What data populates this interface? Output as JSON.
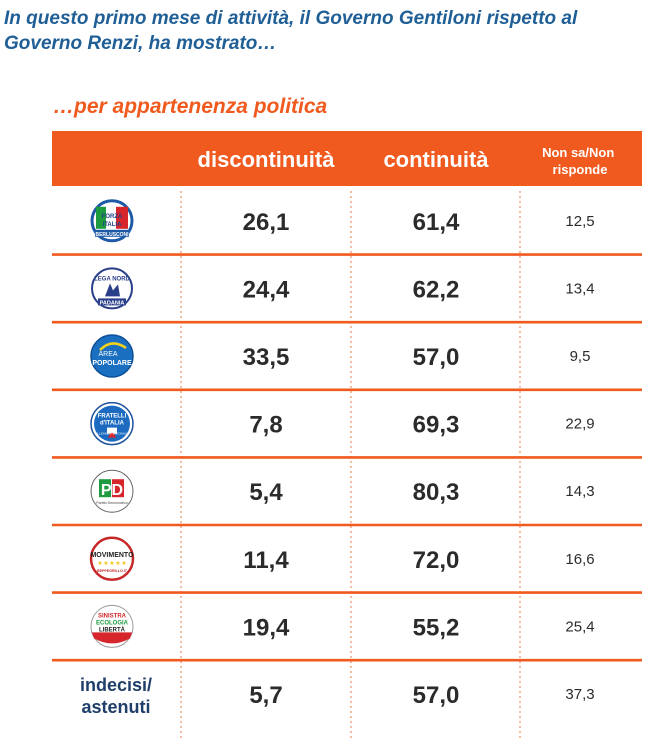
{
  "headline": "In questo primo mese di attività, il Governo Gentiloni rispetto al Governo Renzi, ha mostrato…",
  "subtitle": "…per appartenenza politica",
  "colors": {
    "header_bg": "#f05a1e",
    "header_text": "#ffffff",
    "headline": "#1f5f96",
    "subtitle": "#f05a1e",
    "value_text": "#2b2b2b",
    "row_divider": "#f05a1e",
    "dotted_divider": "#f0a07a"
  },
  "chart_data": {
    "type": "table",
    "columns": [
      "discontinuità",
      "continuità",
      "Non sa/Non risponde"
    ],
    "rows": [
      {
        "party": "Forza Italia",
        "logo_text": [
          "FORZA",
          "ITALIA",
          "BERLUSCONI"
        ],
        "logo_icon": "forza-italia-logo-icon",
        "values": [
          "26,1",
          "61,4",
          "12,5"
        ]
      },
      {
        "party": "Lega Nord",
        "logo_text": [
          "LEGA NORD",
          "PADANIA"
        ],
        "logo_icon": "lega-nord-logo-icon",
        "values": [
          "24,4",
          "62,2",
          "13,4"
        ]
      },
      {
        "party": "Area Popolare",
        "logo_text": [
          "AREA",
          "POPOLARE"
        ],
        "logo_icon": "area-popolare-logo-icon",
        "values": [
          "33,5",
          "57,0",
          "9,5"
        ]
      },
      {
        "party": "Fratelli d'Italia",
        "logo_text": [
          "FRATELLI",
          "d'ITALIA",
          "ALLEANZA NAZIONALE"
        ],
        "logo_icon": "fratelli-italia-logo-icon",
        "values": [
          "7,8",
          "69,3",
          "22,9"
        ]
      },
      {
        "party": "Partito Democratico",
        "logo_text": [
          "PD",
          "Partito Democratico"
        ],
        "logo_icon": "pd-logo-icon",
        "values": [
          "5,4",
          "80,3",
          "14,3"
        ]
      },
      {
        "party": "MoVimento 5 Stelle",
        "logo_text": [
          "MOVIMENTO",
          "BEPPEGRILLO.IT"
        ],
        "logo_icon": "m5s-logo-icon",
        "values": [
          "11,4",
          "72,0",
          "16,6"
        ]
      },
      {
        "party": "Sinistra Ecologia Libertà",
        "logo_text": [
          "SINISTRA",
          "ECOLOGIA",
          "LIBERTÀ"
        ],
        "logo_icon": "sel-logo-icon",
        "values": [
          "19,4",
          "55,2",
          "25,4"
        ]
      },
      {
        "party": "indecisi/ astenuti",
        "label": [
          "indecisi/",
          "astenuti"
        ],
        "values": [
          "5,7",
          "57,0",
          "37,3"
        ]
      }
    ]
  }
}
